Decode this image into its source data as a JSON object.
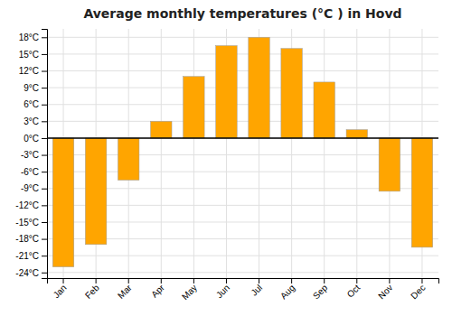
{
  "chart_data": {
    "type": "bar",
    "title": "Average monthly temperatures (°C ) in Hovd",
    "categories": [
      "Jan",
      "Feb",
      "Mar",
      "Apr",
      "May",
      "Jun",
      "Jul",
      "Aug",
      "Sep",
      "Oct",
      "Nov",
      "Dec"
    ],
    "values": [
      -23,
      -19,
      -7.5,
      3,
      11,
      16.5,
      18,
      16,
      10,
      1.5,
      -9.5,
      -19.5
    ],
    "color": "#FFA500",
    "ylim": [
      -25,
      19.5
    ],
    "yticks": [
      {
        "value": -24,
        "label": "-24°C"
      },
      {
        "value": -21,
        "label": "-21°C"
      },
      {
        "value": -18,
        "label": "-18°C"
      },
      {
        "value": -15,
        "label": "-15°C"
      },
      {
        "value": -12,
        "label": "-12°C"
      },
      {
        "value": -9,
        "label": "-9°C"
      },
      {
        "value": -6,
        "label": "-6°C"
      },
      {
        "value": -3,
        "label": "-3°C"
      },
      {
        "value": 0,
        "label": "0°C"
      },
      {
        "value": 3,
        "label": "3°C"
      },
      {
        "value": 6,
        "label": "6°C"
      },
      {
        "value": 9,
        "label": "9°C"
      },
      {
        "value": 12,
        "label": "12°C"
      },
      {
        "value": 15,
        "label": "15°C"
      },
      {
        "value": 18,
        "label": "18°C"
      }
    ],
    "grid": true
  }
}
